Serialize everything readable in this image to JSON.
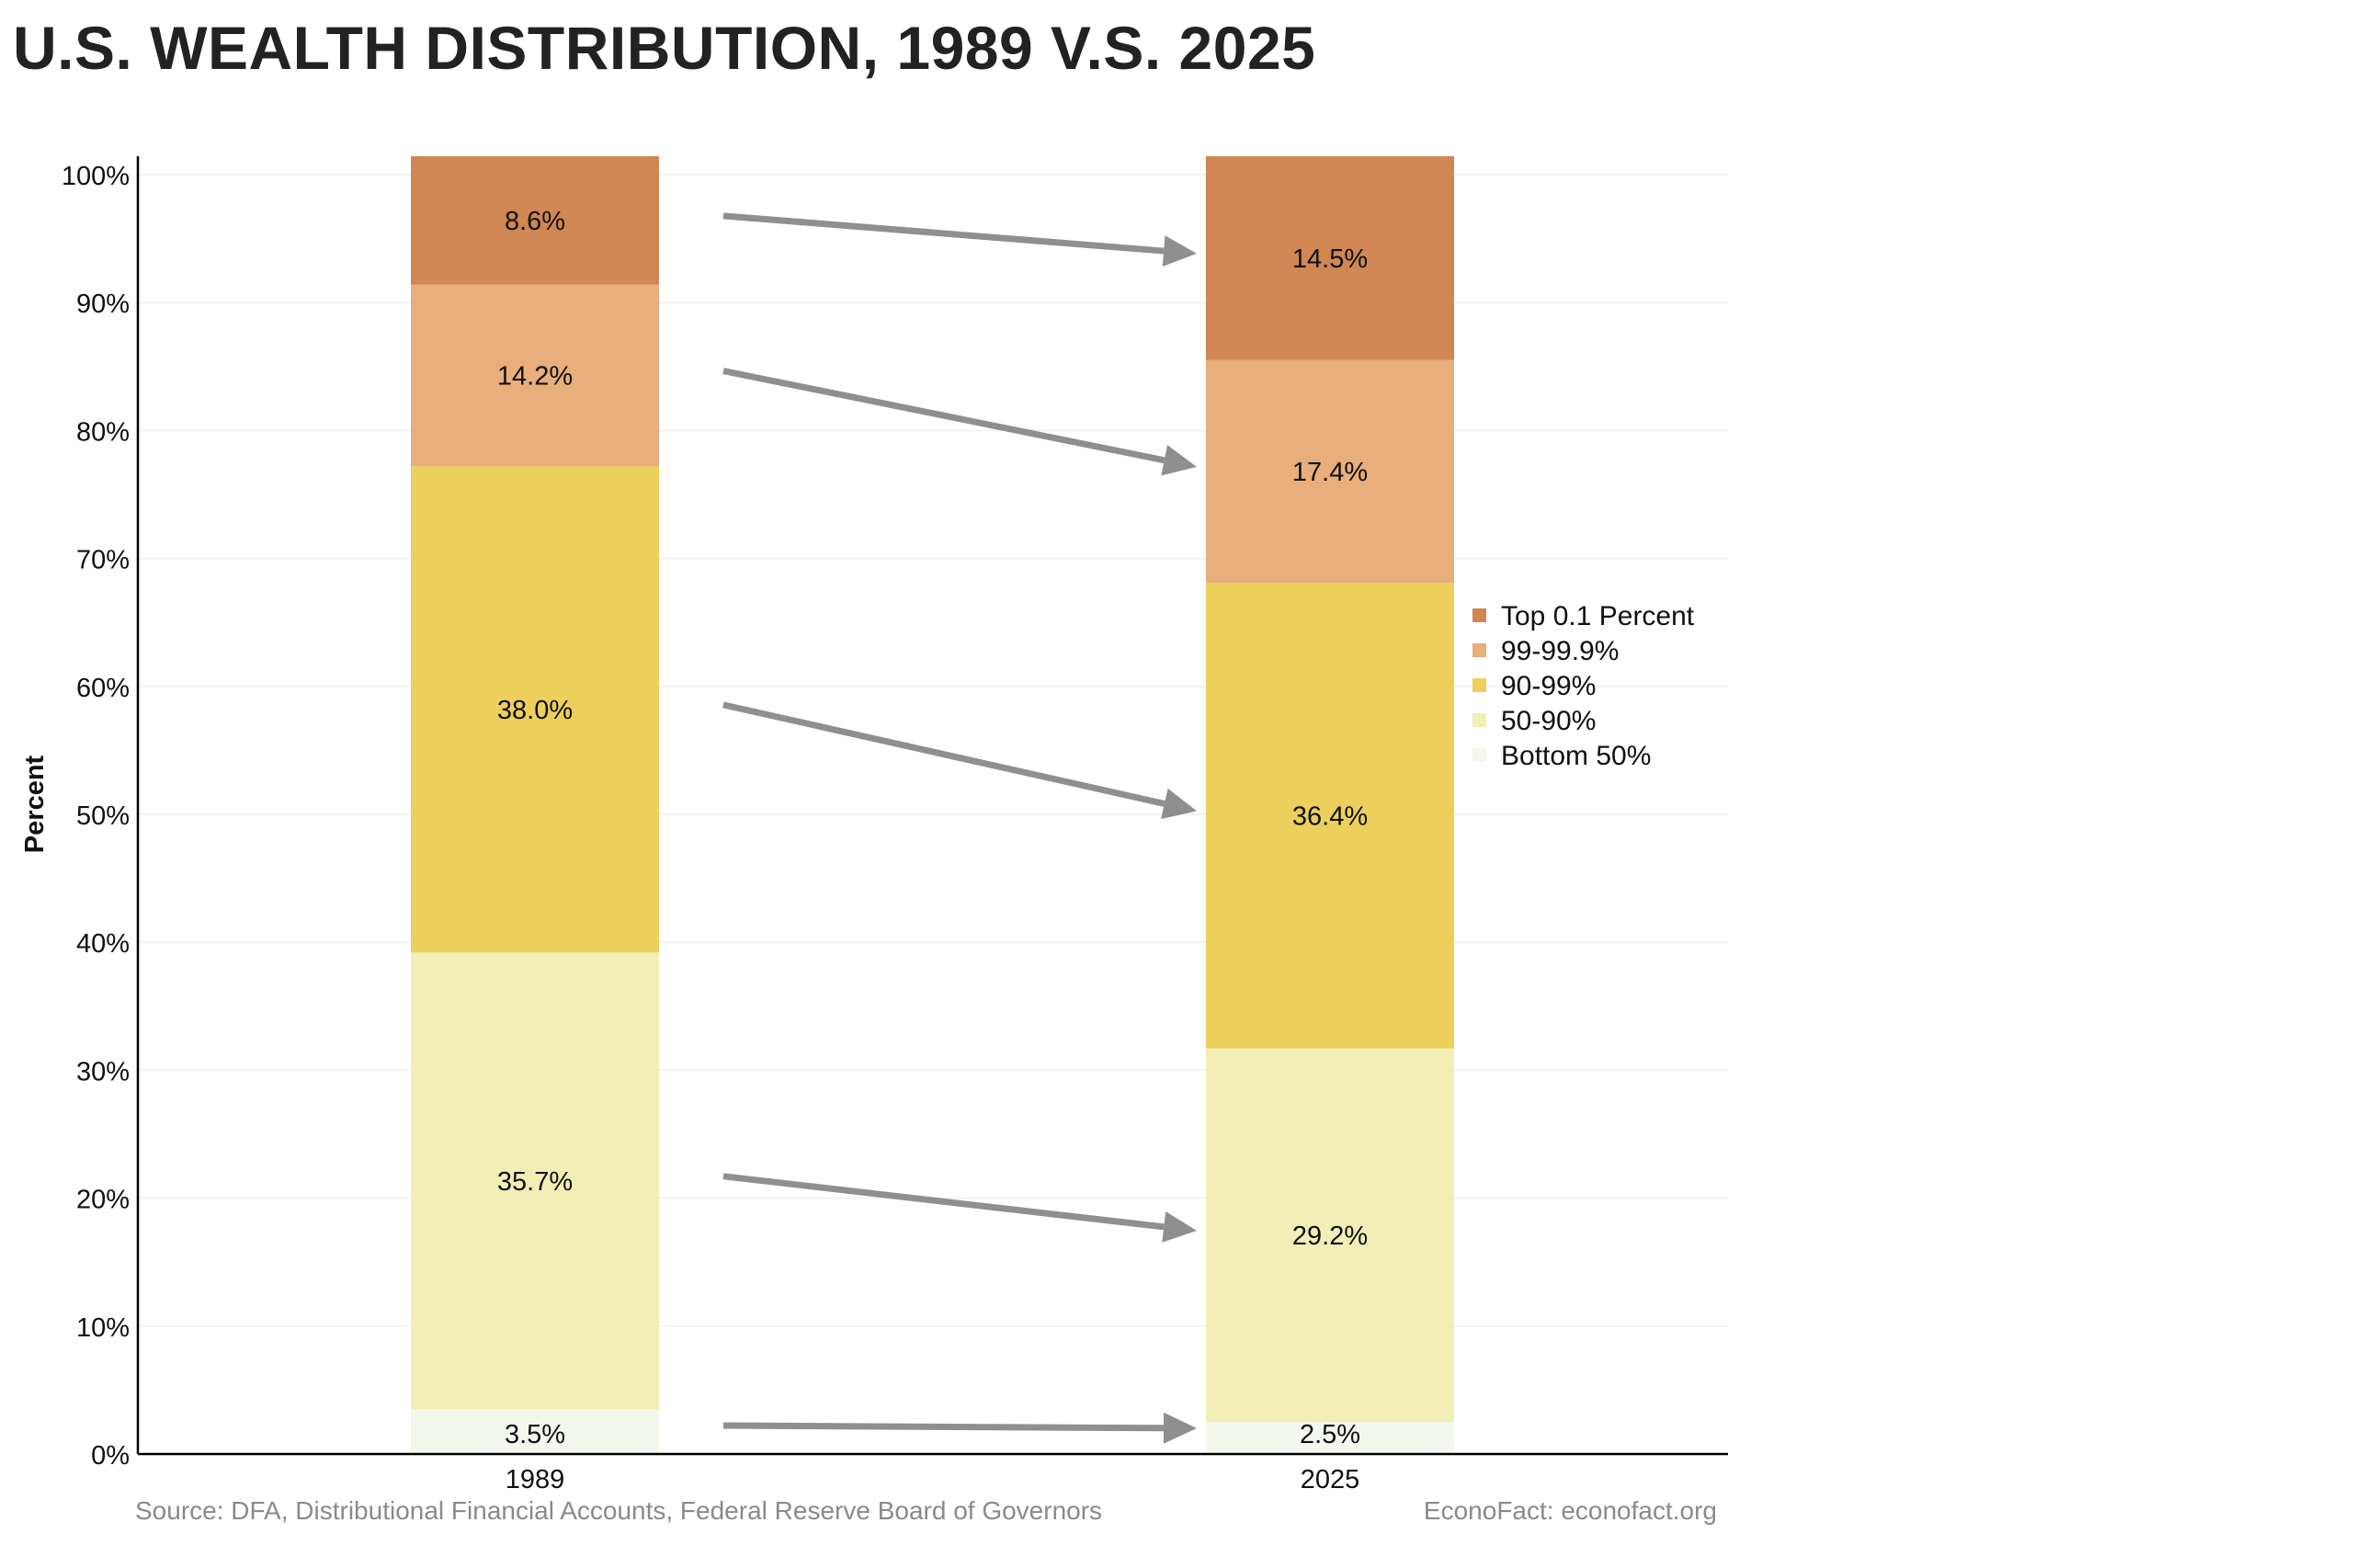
{
  "page": {
    "title": "U.S. WEALTH DISTRIBUTION, 1989 V.S. 2025",
    "source": "Source: DFA, Distributional Financial Accounts, Federal Reserve Board of Governors",
    "credit": "EconoFact: econofact.org"
  },
  "chart_data": {
    "type": "bar",
    "stacked": true,
    "title": "U.S. WEALTH DISTRIBUTION, 1989 V.S. 2025",
    "xlabel": "",
    "ylabel": "Percent",
    "ylim": [
      0,
      100
    ],
    "yticks": [
      "0%",
      "10%",
      "20%",
      "30%",
      "40%",
      "50%",
      "60%",
      "70%",
      "80%",
      "90%",
      "100%"
    ],
    "categories": [
      "1989",
      "2025"
    ],
    "series": [
      {
        "name": "Bottom 50%",
        "values": [
          3.5,
          2.5
        ],
        "labels": [
          "3.5%",
          "2.5%"
        ],
        "color": "#f3f7ec"
      },
      {
        "name": "50-90%",
        "values": [
          35.7,
          29.2
        ],
        "labels": [
          "35.7%",
          "29.2%"
        ],
        "color": "#f3eeb6"
      },
      {
        "name": "90-99%",
        "values": [
          38.0,
          36.4
        ],
        "labels": [
          "38.0%",
          "36.4%"
        ],
        "color": "#edd05c"
      },
      {
        "name": "99-99.9%",
        "values": [
          14.2,
          17.4
        ],
        "labels": [
          "14.2%",
          "17.4%"
        ],
        "color": "#e8ae7b"
      },
      {
        "name": "Top 0.1 Percent",
        "values": [
          8.6,
          14.5
        ],
        "labels": [
          "8.6%",
          "14.5%"
        ],
        "color": "#d08753"
      }
    ],
    "legend": {
      "position": "right",
      "order": [
        "Top 0.1 Percent",
        "99-99.9%",
        "90-99%",
        "50-90%",
        "Bottom 50%"
      ]
    },
    "annotations": "gray arrows link each 1989 segment to the matching 2025 segment",
    "grid": true,
    "colors": {
      "arrow": "#8f8f8f",
      "grid": "#f2f2f2",
      "axis": "#000000",
      "footer_text": "#8a8a8a",
      "title_text": "#222222"
    }
  }
}
